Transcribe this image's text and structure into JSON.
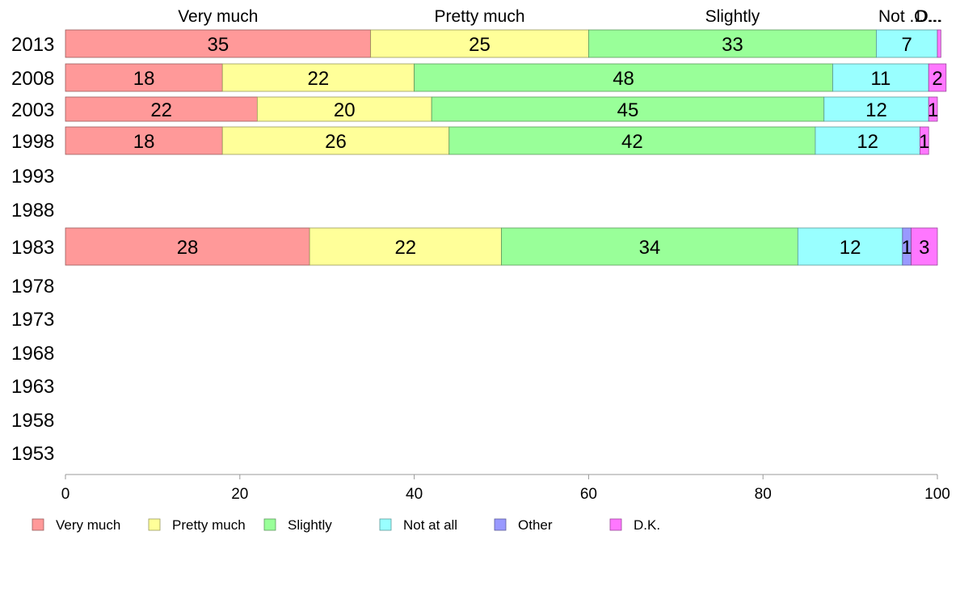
{
  "chart_data": {
    "type": "bar",
    "orientation": "horizontal",
    "stacked": true,
    "categories": [
      "2013",
      "2008",
      "2003",
      "1998",
      "1993",
      "1988",
      "1983",
      "1978",
      "1973",
      "1968",
      "1963",
      "1958",
      "1953"
    ],
    "series": [
      {
        "name": "Very much",
        "color": "#ff9999",
        "values": [
          35,
          18,
          22,
          18,
          null,
          null,
          28,
          null,
          null,
          null,
          null,
          null,
          null
        ]
      },
      {
        "name": "Pretty much",
        "color": "#ffff99",
        "values": [
          25,
          22,
          20,
          26,
          null,
          null,
          22,
          null,
          null,
          null,
          null,
          null,
          null
        ]
      },
      {
        "name": "Slightly",
        "color": "#99ff99",
        "values": [
          33,
          48,
          45,
          42,
          null,
          null,
          34,
          null,
          null,
          null,
          null,
          null,
          null
        ]
      },
      {
        "name": "Not at all",
        "color": "#99ffff",
        "values": [
          7,
          11,
          12,
          12,
          null,
          null,
          12,
          null,
          null,
          null,
          null,
          null,
          null
        ]
      },
      {
        "name": "Other",
        "color": "#9999ff",
        "values": [
          0,
          0,
          0,
          0,
          null,
          null,
          1,
          null,
          null,
          null,
          null,
          null,
          null
        ]
      },
      {
        "name": "D.K.",
        "color": "#ff77ff",
        "values": [
          0.4,
          2,
          1,
          1,
          null,
          null,
          3,
          null,
          null,
          null,
          null,
          null,
          null
        ]
      }
    ],
    "segment_labels": [
      [
        "35",
        "25",
        "33",
        "7",
        "",
        ""
      ],
      [
        "18",
        "22",
        "48",
        "11",
        "",
        "2"
      ],
      [
        "22",
        "20",
        "45",
        "12",
        "",
        "1"
      ],
      [
        "18",
        "26",
        "42",
        "12",
        "",
        "1"
      ],
      [
        "",
        "",
        "",
        "",
        "",
        ""
      ],
      [
        "",
        "",
        "",
        "",
        "",
        ""
      ],
      [
        "28",
        "22",
        "34",
        "12",
        "1",
        "3"
      ],
      [
        "",
        "",
        "",
        "",
        "",
        ""
      ],
      [
        "",
        "",
        "",
        "",
        "",
        ""
      ],
      [
        "",
        "",
        "",
        "",
        "",
        ""
      ],
      [
        "",
        "",
        "",
        "",
        "",
        ""
      ],
      [
        "",
        "",
        "",
        "",
        "",
        ""
      ],
      [
        "",
        "",
        "",
        "",
        "",
        ""
      ]
    ],
    "top_labels": [
      "Very much",
      "Pretty much",
      "Slightly",
      "Not ...",
      "O...",
      "D..."
    ],
    "xlim": [
      0,
      100
    ],
    "xticks": [
      "0",
      "20",
      "40",
      "60",
      "80",
      "100"
    ],
    "grid": false,
    "legend": {
      "placement": "bottom",
      "entries": [
        "Very much",
        "Pretty much",
        "Slightly",
        "Not at all",
        "Other",
        "D.K."
      ]
    }
  }
}
